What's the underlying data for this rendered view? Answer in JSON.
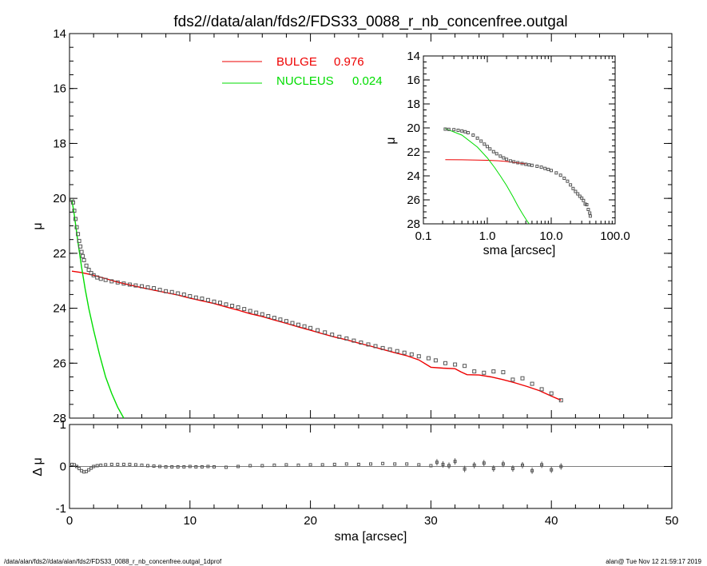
{
  "header": {
    "title": "fds2//data/alan/fds2/FDS33_0088_r_nb_concenfree.outgal"
  },
  "footer": {
    "left": "/data/alan/fds2//data/alan/fds2/FDS33_0088_r_nb_concenfree.outgal_1dprof",
    "right": "alan@  Tue Nov 12 21:59:17 2019"
  },
  "colors": {
    "bulge": "#ee0000",
    "nucleus": "#00dd00",
    "data": "#555555",
    "axes": "#000000"
  },
  "chart_data": [
    {
      "type": "scatter",
      "panel": "main",
      "ylabel": "μ",
      "xlim": [
        0,
        50
      ],
      "ylim": [
        28,
        14
      ],
      "y_inverted": true,
      "xticks": [
        0,
        10,
        20,
        30,
        40,
        50
      ],
      "yticks": [
        14,
        16,
        18,
        20,
        22,
        24,
        26,
        28
      ],
      "legend": {
        "placement": "top-center",
        "entries": [
          {
            "label": "BULGE",
            "value": "0.976",
            "color": "#ee0000"
          },
          {
            "label": "NUCLEUS",
            "value": "0.024",
            "color": "#00dd00"
          }
        ]
      },
      "series": [
        {
          "name": "BULGE",
          "kind": "line",
          "x": [
            0.2,
            1,
            2,
            3,
            4,
            5,
            6,
            7,
            8,
            9,
            10,
            11,
            12,
            13,
            14,
            15,
            16,
            17,
            18,
            19,
            20,
            21,
            22,
            23,
            24,
            25,
            26,
            27,
            28,
            29,
            30,
            31,
            32,
            32.5,
            33,
            34,
            35,
            36,
            37,
            38,
            39,
            40,
            40.8
          ],
          "y": [
            22.65,
            22.7,
            22.8,
            22.92,
            23.05,
            23.15,
            23.25,
            23.34,
            23.43,
            23.52,
            23.63,
            23.73,
            23.83,
            23.95,
            24.07,
            24.2,
            24.3,
            24.43,
            24.55,
            24.68,
            24.8,
            24.93,
            25.05,
            25.15,
            25.27,
            25.38,
            25.5,
            25.62,
            25.73,
            25.88,
            26.15,
            26.18,
            26.2,
            26.32,
            26.42,
            26.43,
            26.5,
            26.6,
            26.72,
            26.85,
            27.0,
            27.2,
            27.35
          ]
        },
        {
          "name": "NUCLEUS",
          "kind": "line",
          "x": [
            0.2,
            0.4,
            0.7,
            1.0,
            1.3,
            1.6,
            2.0,
            2.5,
            3.0,
            3.5,
            4.0,
            4.5
          ],
          "y": [
            20.05,
            20.6,
            21.6,
            22.5,
            23.3,
            24.0,
            24.8,
            25.7,
            26.5,
            27.1,
            27.6,
            28.0
          ]
        },
        {
          "name": "data",
          "kind": "points",
          "x": [
            0.2,
            0.3,
            0.4,
            0.5,
            0.6,
            0.7,
            0.8,
            0.9,
            1.0,
            1.1,
            1.2,
            1.4,
            1.6,
            1.8,
            2.0,
            2.3,
            2.6,
            3.0,
            3.5,
            4.0,
            4.5,
            5.0,
            5.5,
            6.0,
            6.5,
            7.0,
            7.5,
            8.0,
            8.5,
            9.0,
            9.5,
            10.0,
            10.5,
            11.0,
            11.5,
            12.0,
            12.5,
            13.0,
            13.5,
            14.0,
            14.5,
            15.0,
            15.5,
            16.0,
            16.5,
            17.0,
            17.5,
            18.0,
            18.5,
            19.0,
            19.5,
            20.0,
            20.6,
            21.2,
            21.8,
            22.4,
            23.0,
            23.6,
            24.2,
            24.8,
            25.4,
            26.0,
            26.6,
            27.2,
            27.8,
            28.4,
            29.0,
            29.8,
            30.4,
            31.2,
            32.0,
            32.8,
            33.6,
            34.4,
            35.2,
            36.0,
            36.8,
            37.6,
            38.4,
            39.2,
            40.0,
            40.8
          ],
          "y": [
            20.05,
            20.15,
            20.45,
            20.75,
            21.05,
            21.3,
            21.55,
            21.75,
            21.95,
            22.1,
            22.25,
            22.45,
            22.6,
            22.72,
            22.8,
            22.88,
            22.93,
            22.97,
            23.02,
            23.06,
            23.1,
            23.14,
            23.17,
            23.2,
            23.24,
            23.27,
            23.33,
            23.38,
            23.41,
            23.46,
            23.5,
            23.56,
            23.61,
            23.65,
            23.7,
            23.76,
            23.8,
            23.86,
            23.91,
            23.97,
            24.03,
            24.1,
            24.16,
            24.22,
            24.29,
            24.35,
            24.41,
            24.47,
            24.54,
            24.6,
            24.66,
            24.72,
            24.8,
            24.88,
            24.96,
            25.04,
            25.1,
            25.18,
            25.25,
            25.32,
            25.38,
            25.45,
            25.5,
            25.56,
            25.62,
            25.68,
            25.75,
            25.82,
            25.9,
            26.0,
            26.05,
            26.1,
            26.3,
            26.35,
            26.3,
            26.33,
            26.6,
            26.55,
            26.75,
            26.95,
            27.1,
            27.35
          ]
        }
      ]
    },
    {
      "type": "scatter",
      "panel": "inset",
      "xlabel": "sma [arcsec]",
      "ylabel": "μ",
      "x_scale": "log",
      "xlim": [
        0.1,
        100
      ],
      "ylim": [
        28,
        14
      ],
      "y_inverted": true,
      "xticks": [
        0.1,
        1,
        10,
        100
      ],
      "xticklabels": [
        "0.1",
        "1.0",
        "10.0",
        "100.0"
      ],
      "yticks": [
        14,
        16,
        18,
        20,
        22,
        24,
        26,
        28
      ],
      "series": [
        {
          "name": "BULGE",
          "kind": "line",
          "x": [
            0.22,
            0.4,
            0.7,
            1.0,
            1.5,
            2.0,
            3.0,
            4.0
          ],
          "y": [
            22.65,
            22.66,
            22.68,
            22.7,
            22.74,
            22.8,
            22.92,
            23.0
          ]
        },
        {
          "name": "NUCLEUS",
          "kind": "line",
          "x": [
            0.22,
            0.4,
            0.7,
            1.0,
            1.3,
            1.6,
            2.0,
            2.5,
            3.0,
            3.5,
            4.0,
            4.5
          ],
          "y": [
            20.05,
            20.6,
            21.6,
            22.5,
            23.3,
            24.0,
            24.8,
            25.7,
            26.5,
            27.1,
            27.6,
            28.0
          ]
        },
        {
          "name": "data",
          "kind": "points",
          "x": [
            0.22,
            0.25,
            0.3,
            0.35,
            0.4,
            0.45,
            0.5,
            0.6,
            0.7,
            0.8,
            0.9,
            1.0,
            1.1,
            1.25,
            1.4,
            1.6,
            1.8,
            2.0,
            2.3,
            2.6,
            3.0,
            3.5,
            4.0,
            4.5,
            5.0,
            6.0,
            7.0,
            8.0,
            9.0,
            10.0,
            12.0,
            14.0,
            16.0,
            18.0,
            20.0,
            22.0,
            24.0,
            26.0,
            28.0,
            30.0,
            32.0,
            34.0,
            36.0,
            38.0,
            40.0,
            40.8
          ],
          "y": [
            20.1,
            20.12,
            20.15,
            20.2,
            20.25,
            20.32,
            20.4,
            20.6,
            20.85,
            21.1,
            21.35,
            21.55,
            21.75,
            21.98,
            22.15,
            22.35,
            22.5,
            22.62,
            22.75,
            22.83,
            22.9,
            22.97,
            23.03,
            23.08,
            23.12,
            23.2,
            23.27,
            23.38,
            23.46,
            23.55,
            23.75,
            23.95,
            24.2,
            24.45,
            24.75,
            25.05,
            25.3,
            25.5,
            25.7,
            25.85,
            26.05,
            26.35,
            26.4,
            26.8,
            27.1,
            27.35
          ]
        }
      ]
    },
    {
      "type": "scatter",
      "panel": "residual",
      "xlabel": "sma [arcsec]",
      "ylabel": "Δ μ",
      "xlim": [
        0,
        50
      ],
      "ylim": [
        -1,
        1
      ],
      "xticks": [
        0,
        10,
        20,
        30,
        40,
        50
      ],
      "yticks": [
        -1,
        0,
        1
      ],
      "series": [
        {
          "name": "residual",
          "kind": "points",
          "x": [
            0.2,
            0.4,
            0.6,
            0.8,
            1.0,
            1.2,
            1.4,
            1.6,
            1.8,
            2.0,
            2.3,
            2.6,
            3.0,
            3.5,
            4.0,
            4.5,
            5.0,
            5.5,
            6.0,
            6.5,
            7.0,
            7.5,
            8.0,
            8.5,
            9.0,
            9.5,
            10.0,
            10.5,
            11.0,
            11.5,
            12.0,
            13.0,
            14.0,
            15.0,
            16.0,
            17.0,
            18.0,
            19.0,
            20.0,
            21.0,
            22.0,
            23.0,
            24.0,
            25.0,
            26.0,
            27.0,
            28.0,
            29.0,
            30.0,
            30.5,
            31.0,
            31.5,
            32.0,
            32.8,
            33.6,
            34.4,
            35.2,
            36.0,
            36.8,
            37.6,
            38.4,
            39.2,
            40.0,
            40.8
          ],
          "y": [
            0.05,
            0.04,
            0.0,
            -0.05,
            -0.1,
            -0.13,
            -0.12,
            -0.08,
            -0.04,
            0.0,
            0.02,
            0.03,
            0.04,
            0.05,
            0.05,
            0.05,
            0.05,
            0.04,
            0.03,
            0.02,
            0.01,
            0.0,
            -0.01,
            -0.01,
            -0.01,
            -0.01,
            0.0,
            -0.01,
            -0.01,
            0.0,
            -0.01,
            -0.02,
            0.0,
            0.02,
            0.02,
            0.03,
            0.04,
            0.03,
            0.04,
            0.04,
            0.05,
            0.06,
            0.05,
            0.06,
            0.07,
            0.06,
            0.06,
            0.04,
            0.02,
            0.1,
            0.05,
            0.02,
            0.12,
            -0.06,
            0.03,
            0.08,
            -0.05,
            0.06,
            -0.05,
            0.03,
            -0.1,
            0.04,
            -0.08,
            0.0
          ]
        }
      ]
    }
  ]
}
